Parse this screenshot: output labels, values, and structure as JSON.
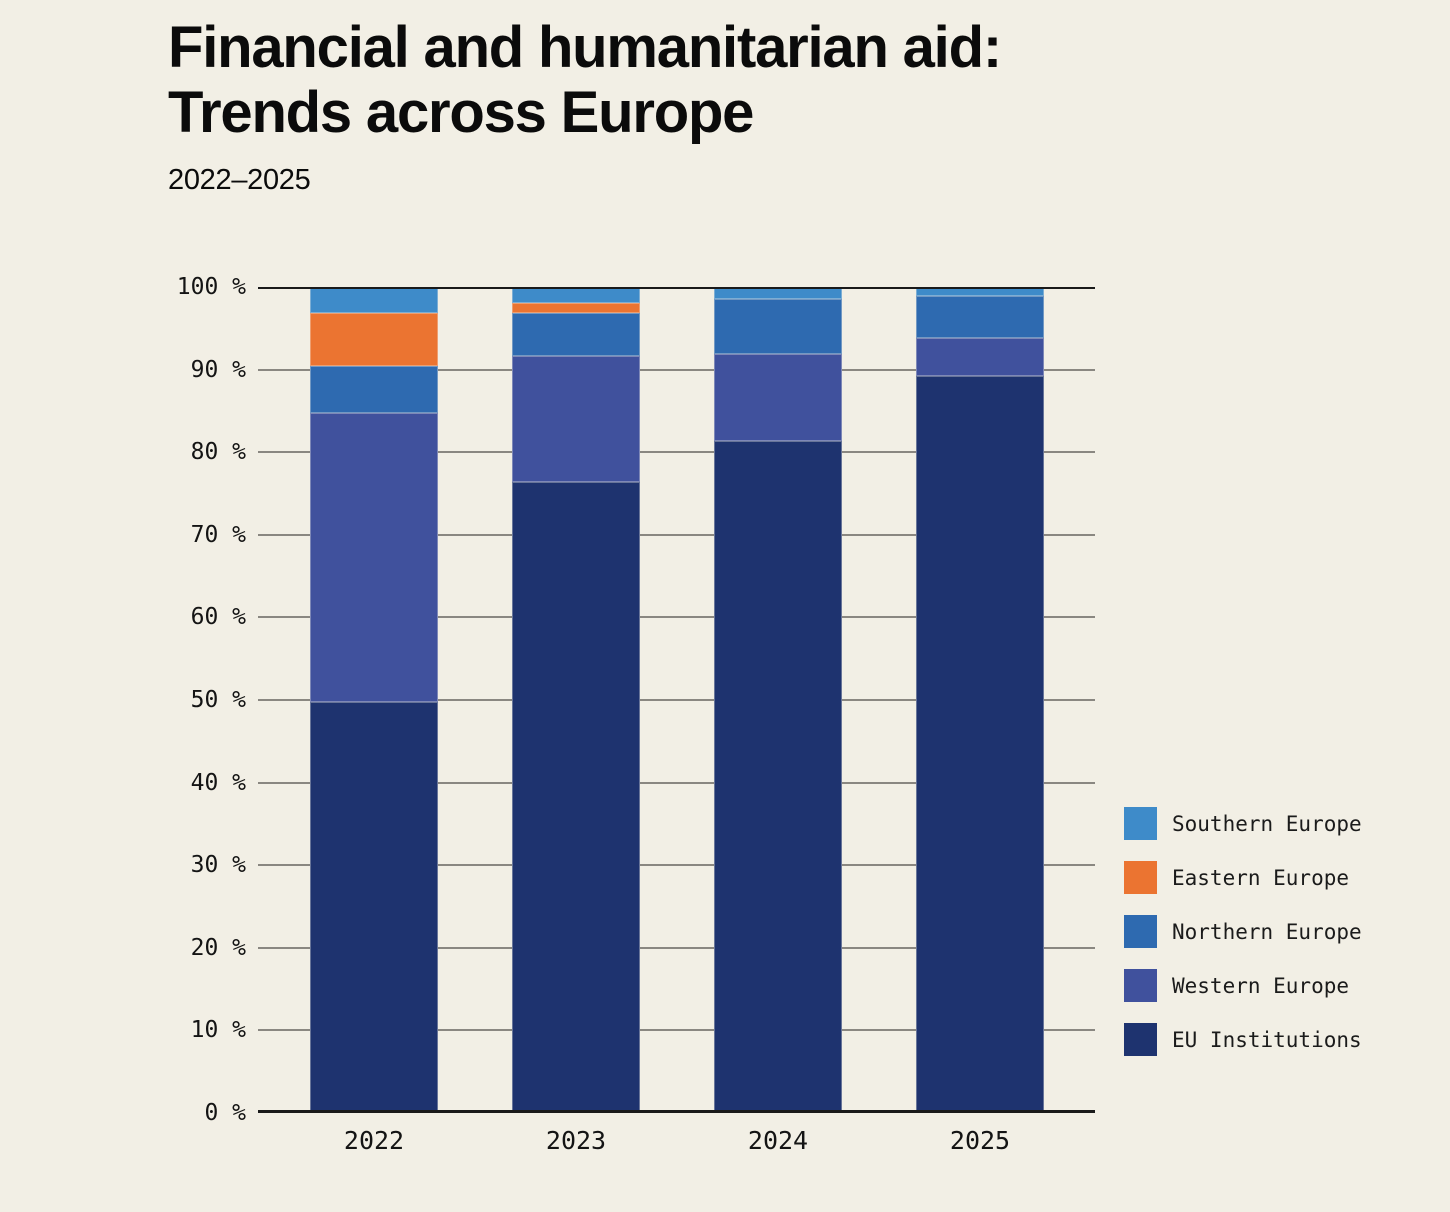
{
  "header": {
    "title_line1": "Financial and humanitarian aid:",
    "title_line2": "Trends across Europe",
    "subtitle": "2022–2025"
  },
  "colors": {
    "background": "#f2efe5",
    "axis_line": "#1a1a1a",
    "gridline": "#8a8781",
    "text": "#141414"
  },
  "chart_data": {
    "type": "bar",
    "stacked": true,
    "unit": "percent",
    "title": "Financial and humanitarian aid: Trends across Europe",
    "subtitle": "2022–2025",
    "categories": [
      "2022",
      "2023",
      "2024",
      "2025"
    ],
    "series": [
      {
        "name": "EU Institutions",
        "color": "#1e336f",
        "values": [
          49.7,
          76.4,
          81.3,
          89.2
        ]
      },
      {
        "name": "Western Europe",
        "color": "#40519d",
        "values": [
          35.0,
          15.3,
          10.6,
          4.6
        ]
      },
      {
        "name": "Northern Europe",
        "color": "#2e6ab0",
        "values": [
          5.7,
          5.2,
          6.6,
          5.1
        ]
      },
      {
        "name": "Eastern Europe",
        "color": "#eb7431",
        "values": [
          6.5,
          1.2,
          0,
          0
        ]
      },
      {
        "name": "Southern Europe",
        "color": "#3e8bc9",
        "values": [
          3.1,
          1.9,
          1.5,
          1.1
        ]
      }
    ],
    "ylim": [
      0,
      100
    ],
    "yticks": [
      0,
      10,
      20,
      30,
      40,
      50,
      60,
      70,
      80,
      90,
      100
    ],
    "ytick_format": "{v} %",
    "xlabel": "",
    "ylabel": "",
    "grid": "horizontal",
    "legend_position": "right-bottom",
    "legend_order": [
      "Southern Europe",
      "Eastern Europe",
      "Northern Europe",
      "Western Europe",
      "EU Institutions"
    ]
  }
}
